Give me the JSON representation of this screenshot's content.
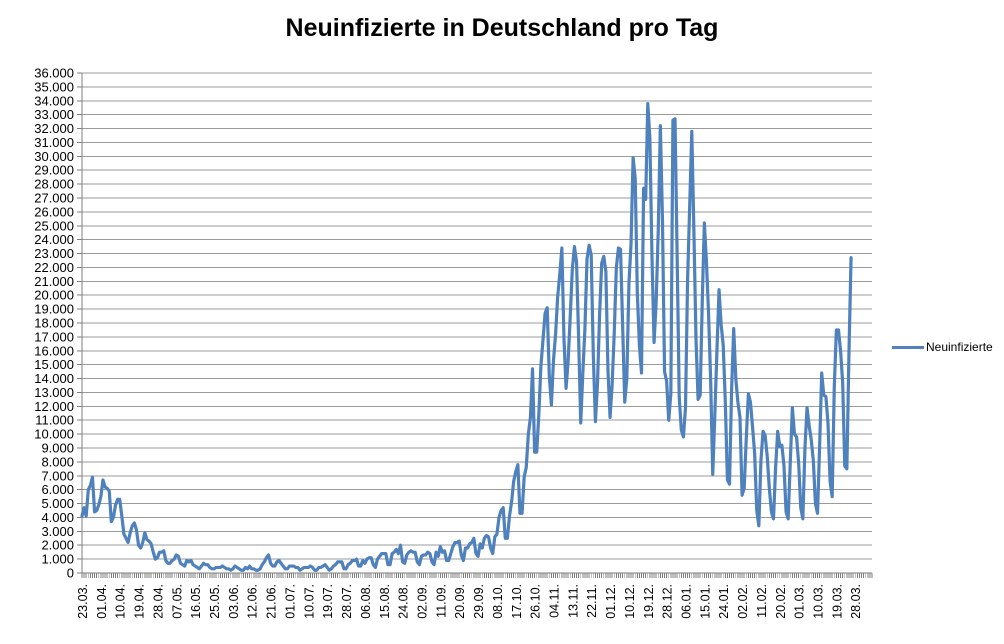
{
  "chart_data": {
    "type": "line",
    "title": "Neuinfizierte in Deutschland pro Tag",
    "legend": {
      "label": "Neuinfizierte",
      "position": "right"
    },
    "series_name": "Neuinfizierte",
    "line_color": "#4F81BD",
    "grid_color": "#9B9B9B",
    "axis_color": "#7F7F7F",
    "text_color": "#000000",
    "grid": true,
    "y_axis": {
      "min": 0,
      "max": 36000,
      "step": 1000,
      "number_format": "thousands-dot"
    },
    "x_axis": {
      "tick_labels": [
        "23.03.",
        "01.04.",
        "10.04.",
        "19.04.",
        "28.04.",
        "07.05.",
        "16.05.",
        "25.05.",
        "03.06.",
        "12.06.",
        "21.06.",
        "01.07.",
        "10.07.",
        "19.07.",
        "28.07.",
        "06.08.",
        "15.08.",
        "24.08.",
        "02.09.",
        "11.09.",
        "20.09.",
        "29.09.",
        "08.10.",
        "17.10.",
        "26.10.",
        "04.11.",
        "13.11.",
        "22.11.",
        "01.12.",
        "10.12.",
        "19.12.",
        "28.12.",
        "06.01.",
        "15.01.",
        "24.01.",
        "02.02.",
        "11.02.",
        "20.02.",
        "01.03.",
        "10.03.",
        "19.03.",
        "28.03."
      ],
      "label_interval_days": 9,
      "total_categories": 378,
      "minor_tick_every_day": true
    },
    "values": [
      4100,
      4700,
      4100,
      6000,
      6300,
      6900,
      4400,
      4500,
      4900,
      5500,
      6700,
      6200,
      6100,
      5900,
      3700,
      4000,
      4900,
      5300,
      5300,
      4100,
      2800,
      2500,
      2200,
      2900,
      3400,
      3600,
      3100,
      2000,
      1800,
      2200,
      2900,
      2400,
      2300,
      2100,
      1500,
      1000,
      1100,
      1500,
      1500,
      1600,
      900,
      700,
      700,
      900,
      1000,
      1300,
      1200,
      700,
      600,
      500,
      900,
      800,
      900,
      600,
      500,
      400,
      300,
      500,
      700,
      600,
      600,
      400,
      300,
      300,
      400,
      400,
      400,
      500,
      400,
      300,
      300,
      200,
      300,
      500,
      400,
      300,
      200,
      200,
      400,
      300,
      500,
      300,
      300,
      200,
      200,
      300,
      600,
      800,
      1100,
      1300,
      700,
      500,
      500,
      800,
      900,
      700,
      500,
      300,
      300,
      500,
      500,
      500,
      400,
      400,
      200,
      300,
      400,
      400,
      400,
      500,
      400,
      200,
      200,
      400,
      400,
      500,
      600,
      400,
      200,
      300,
      500,
      600,
      800,
      800,
      800,
      300,
      300,
      600,
      700,
      900,
      900,
      1000,
      500,
      500,
      900,
      700,
      1000,
      1100,
      1100,
      600,
      400,
      1000,
      1200,
      1400,
      1400,
      1400,
      600,
      600,
      1400,
      1500,
      1700,
      1400,
      2000,
      800,
      700,
      1300,
      1500,
      1600,
      1500,
      1500,
      800,
      600,
      1200,
      1300,
      1300,
      1500,
      1400,
      800,
      600,
      1500,
      1200,
      1900,
      1500,
      1600,
      900,
      900,
      1400,
      1900,
      2200,
      2200,
      2300,
      1300,
      900,
      1800,
      1800,
      2100,
      2200,
      2500,
      1400,
      1200,
      2100,
      1800,
      2500,
      2700,
      2600,
      1800,
      1400,
      2600,
      2800,
      4000,
      4500,
      4700,
      2500,
      2500,
      4100,
      5100,
      6600,
      7300,
      7800,
      4300,
      4300,
      6900,
      7600,
      10000,
      11200,
      14700,
      8700,
      8700,
      11400,
      14900,
      16800,
      18700,
      19100,
      14200,
      12100,
      15300,
      17200,
      19900,
      21500,
      23400,
      16900,
      13300,
      15300,
      18500,
      21900,
      23500,
      22400,
      16900,
      10800,
      14400,
      17600,
      22600,
      23600,
      22900,
      15700,
      10900,
      13600,
      18600,
      22300,
      22800,
      21700,
      14600,
      11200,
      13600,
      17300,
      22000,
      23400,
      23300,
      17800,
      12300,
      14000,
      20800,
      23700,
      29900,
      28400,
      20200,
      16400,
      14400,
      27700,
      26900,
      33800,
      31300,
      22800,
      16600,
      19500,
      24700,
      32200,
      25500,
      14500,
      13800,
      11000,
      12900,
      32600,
      32700,
      22900,
      12700,
      10300,
      9800,
      11900,
      21200,
      26400,
      31800,
      24700,
      16900,
      12500,
      12800,
      19600,
      25200,
      22400,
      18700,
      13900,
      7100,
      11400,
      16000,
      20400,
      17900,
      16400,
      12300,
      6700,
      6400,
      13200,
      17600,
      14000,
      12300,
      11200,
      5600,
      6100,
      9700,
      12900,
      12300,
      10500,
      8600,
      4500,
      3400,
      8100,
      10200,
      9900,
      8400,
      6100,
      4400,
      3900,
      7600,
      10200,
      9100,
      9200,
      7700,
      4400,
      3900,
      8000,
      11900,
      10000,
      9800,
      7900,
      4700,
      3900,
      9000,
      11900,
      10600,
      9600,
      8100,
      5000,
      4300,
      9100,
      14400,
      12800,
      12700,
      10800,
      6600,
      5500,
      13400,
      17500,
      17500,
      16000,
      13700,
      7700,
      7500,
      15800,
      22700
    ]
  }
}
